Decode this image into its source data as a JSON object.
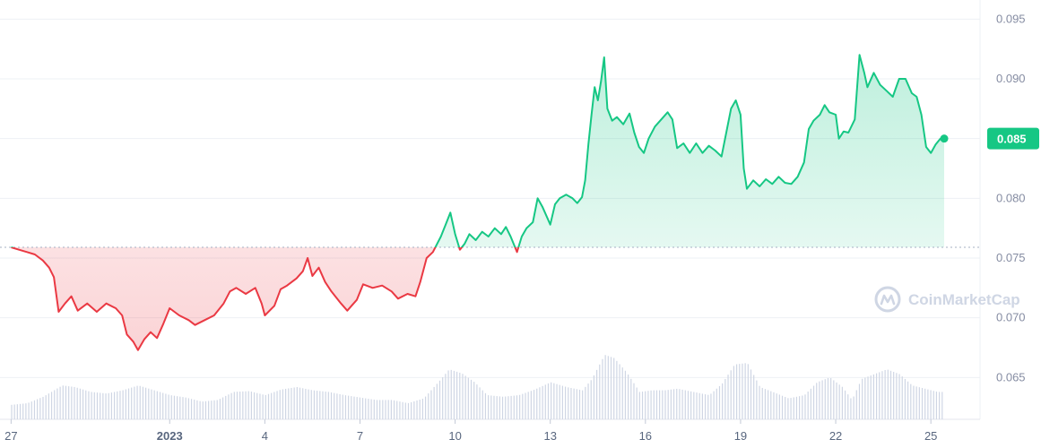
{
  "chart_data": {
    "type": "area",
    "y_axis_ticks": [
      "0.095",
      "0.090",
      "0.085",
      "0.080",
      "0.075",
      "0.070",
      "0.065"
    ],
    "ylim": [
      0.0615,
      0.0966
    ],
    "x_axis_ticks": [
      {
        "label": "27",
        "x": 0,
        "bold": false
      },
      {
        "label": "2023",
        "x": 5,
        "bold": true
      },
      {
        "label": "4",
        "x": 8,
        "bold": false
      },
      {
        "label": "7",
        "x": 11,
        "bold": false
      },
      {
        "label": "10",
        "x": 14,
        "bold": false
      },
      {
        "label": "13",
        "x": 17,
        "bold": false
      },
      {
        "label": "16",
        "x": 20,
        "bold": false
      },
      {
        "label": "19",
        "x": 23,
        "bold": false
      },
      {
        "label": "22",
        "x": 26,
        "bold": false
      },
      {
        "label": "25",
        "x": 29,
        "bold": false
      }
    ],
    "x_range": [
      -0.35,
      30.55
    ],
    "baseline": 0.0759,
    "current_price": {
      "label": "0.085",
      "value": 0.085
    },
    "price_series": [
      [
        0.0,
        0.0759
      ],
      [
        0.25,
        0.0757
      ],
      [
        0.5,
        0.0755
      ],
      [
        0.75,
        0.0753
      ],
      [
        1.0,
        0.0748
      ],
      [
        1.2,
        0.0742
      ],
      [
        1.35,
        0.0734
      ],
      [
        1.5,
        0.0705
      ],
      [
        1.7,
        0.0712
      ],
      [
        1.9,
        0.0718
      ],
      [
        2.1,
        0.0706
      ],
      [
        2.4,
        0.0712
      ],
      [
        2.7,
        0.0705
      ],
      [
        3.0,
        0.0712
      ],
      [
        3.3,
        0.0708
      ],
      [
        3.5,
        0.0702
      ],
      [
        3.65,
        0.0686
      ],
      [
        3.85,
        0.068
      ],
      [
        4.0,
        0.0673
      ],
      [
        4.2,
        0.0682
      ],
      [
        4.4,
        0.0688
      ],
      [
        4.6,
        0.0683
      ],
      [
        4.8,
        0.0695
      ],
      [
        5.0,
        0.0708
      ],
      [
        5.3,
        0.0702
      ],
      [
        5.6,
        0.0698
      ],
      [
        5.8,
        0.0694
      ],
      [
        6.1,
        0.0698
      ],
      [
        6.4,
        0.0702
      ],
      [
        6.7,
        0.0712
      ],
      [
        6.9,
        0.0722
      ],
      [
        7.1,
        0.0725
      ],
      [
        7.4,
        0.072
      ],
      [
        7.7,
        0.0725
      ],
      [
        7.9,
        0.0712
      ],
      [
        8.0,
        0.0702
      ],
      [
        8.3,
        0.071
      ],
      [
        8.5,
        0.0724
      ],
      [
        8.7,
        0.0727
      ],
      [
        9.0,
        0.0733
      ],
      [
        9.2,
        0.0739
      ],
      [
        9.35,
        0.075
      ],
      [
        9.5,
        0.0735
      ],
      [
        9.7,
        0.0742
      ],
      [
        9.9,
        0.073
      ],
      [
        10.1,
        0.0722
      ],
      [
        10.4,
        0.0712
      ],
      [
        10.6,
        0.0706
      ],
      [
        10.9,
        0.0715
      ],
      [
        11.1,
        0.0728
      ],
      [
        11.4,
        0.0725
      ],
      [
        11.7,
        0.0727
      ],
      [
        12.0,
        0.0722
      ],
      [
        12.2,
        0.0716
      ],
      [
        12.5,
        0.072
      ],
      [
        12.75,
        0.0718
      ],
      [
        12.9,
        0.073
      ],
      [
        13.1,
        0.075
      ],
      [
        13.3,
        0.0755
      ],
      [
        13.55,
        0.0768
      ],
      [
        13.7,
        0.0778
      ],
      [
        13.85,
        0.0788
      ],
      [
        14.0,
        0.077
      ],
      [
        14.15,
        0.0757
      ],
      [
        14.3,
        0.0762
      ],
      [
        14.45,
        0.077
      ],
      [
        14.65,
        0.0765
      ],
      [
        14.85,
        0.0772
      ],
      [
        15.05,
        0.0768
      ],
      [
        15.25,
        0.0775
      ],
      [
        15.45,
        0.077
      ],
      [
        15.6,
        0.0776
      ],
      [
        15.75,
        0.0768
      ],
      [
        15.95,
        0.0755
      ],
      [
        16.1,
        0.0768
      ],
      [
        16.25,
        0.0775
      ],
      [
        16.45,
        0.078
      ],
      [
        16.6,
        0.08
      ],
      [
        16.75,
        0.0793
      ],
      [
        16.9,
        0.0784
      ],
      [
        17.0,
        0.0778
      ],
      [
        17.15,
        0.0795
      ],
      [
        17.3,
        0.08
      ],
      [
        17.5,
        0.0803
      ],
      [
        17.7,
        0.08
      ],
      [
        17.85,
        0.0796
      ],
      [
        18.0,
        0.0801
      ],
      [
        18.1,
        0.0815
      ],
      [
        18.2,
        0.0845
      ],
      [
        18.3,
        0.087
      ],
      [
        18.4,
        0.0893
      ],
      [
        18.5,
        0.0882
      ],
      [
        18.6,
        0.0898
      ],
      [
        18.7,
        0.0918
      ],
      [
        18.8,
        0.0875
      ],
      [
        18.95,
        0.0865
      ],
      [
        19.1,
        0.0868
      ],
      [
        19.3,
        0.0862
      ],
      [
        19.5,
        0.0871
      ],
      [
        19.65,
        0.0855
      ],
      [
        19.8,
        0.0843
      ],
      [
        19.95,
        0.0838
      ],
      [
        20.1,
        0.085
      ],
      [
        20.3,
        0.086
      ],
      [
        20.5,
        0.0866
      ],
      [
        20.7,
        0.0872
      ],
      [
        20.85,
        0.0866
      ],
      [
        21.0,
        0.0842
      ],
      [
        21.2,
        0.0846
      ],
      [
        21.4,
        0.0838
      ],
      [
        21.6,
        0.0846
      ],
      [
        21.8,
        0.0838
      ],
      [
        22.0,
        0.0844
      ],
      [
        22.2,
        0.084
      ],
      [
        22.4,
        0.0835
      ],
      [
        22.55,
        0.0855
      ],
      [
        22.7,
        0.0875
      ],
      [
        22.85,
        0.0882
      ],
      [
        23.0,
        0.087
      ],
      [
        23.1,
        0.0825
      ],
      [
        23.2,
        0.0808
      ],
      [
        23.4,
        0.0815
      ],
      [
        23.6,
        0.081
      ],
      [
        23.8,
        0.0816
      ],
      [
        24.0,
        0.0812
      ],
      [
        24.2,
        0.0818
      ],
      [
        24.4,
        0.0813
      ],
      [
        24.6,
        0.0812
      ],
      [
        24.8,
        0.0818
      ],
      [
        25.0,
        0.083
      ],
      [
        25.15,
        0.0858
      ],
      [
        25.3,
        0.0865
      ],
      [
        25.5,
        0.087
      ],
      [
        25.65,
        0.0878
      ],
      [
        25.8,
        0.0872
      ],
      [
        26.0,
        0.087
      ],
      [
        26.1,
        0.085
      ],
      [
        26.25,
        0.0856
      ],
      [
        26.4,
        0.0855
      ],
      [
        26.6,
        0.0866
      ],
      [
        26.75,
        0.092
      ],
      [
        26.9,
        0.0905
      ],
      [
        27.0,
        0.0893
      ],
      [
        27.2,
        0.0905
      ],
      [
        27.4,
        0.0895
      ],
      [
        27.6,
        0.089
      ],
      [
        27.8,
        0.0885
      ],
      [
        28.0,
        0.09
      ],
      [
        28.2,
        0.09
      ],
      [
        28.4,
        0.0888
      ],
      [
        28.55,
        0.0885
      ],
      [
        28.7,
        0.087
      ],
      [
        28.85,
        0.0843
      ],
      [
        29.0,
        0.0838
      ],
      [
        29.15,
        0.0845
      ],
      [
        29.3,
        0.085
      ],
      [
        29.42,
        0.085
      ]
    ],
    "volume_series": [
      [
        0.0,
        0.18
      ],
      [
        0.5,
        0.2
      ],
      [
        1.0,
        0.28
      ],
      [
        1.3,
        0.35
      ],
      [
        1.6,
        0.42
      ],
      [
        2.0,
        0.4
      ],
      [
        2.5,
        0.34
      ],
      [
        3.0,
        0.32
      ],
      [
        3.5,
        0.36
      ],
      [
        4.0,
        0.42
      ],
      [
        4.5,
        0.36
      ],
      [
        5.0,
        0.3
      ],
      [
        5.5,
        0.27
      ],
      [
        6.0,
        0.22
      ],
      [
        6.5,
        0.24
      ],
      [
        7.0,
        0.34
      ],
      [
        7.5,
        0.35
      ],
      [
        8.0,
        0.3
      ],
      [
        8.5,
        0.37
      ],
      [
        9.0,
        0.4
      ],
      [
        9.5,
        0.36
      ],
      [
        10.0,
        0.34
      ],
      [
        10.5,
        0.3
      ],
      [
        11.0,
        0.27
      ],
      [
        11.5,
        0.24
      ],
      [
        12.0,
        0.24
      ],
      [
        12.5,
        0.2
      ],
      [
        13.0,
        0.26
      ],
      [
        13.5,
        0.48
      ],
      [
        13.8,
        0.62
      ],
      [
        14.2,
        0.57
      ],
      [
        14.6,
        0.46
      ],
      [
        15.0,
        0.3
      ],
      [
        15.5,
        0.28
      ],
      [
        16.0,
        0.3
      ],
      [
        16.5,
        0.37
      ],
      [
        17.0,
        0.46
      ],
      [
        17.5,
        0.4
      ],
      [
        18.0,
        0.36
      ],
      [
        18.3,
        0.5
      ],
      [
        18.7,
        0.8
      ],
      [
        19.0,
        0.76
      ],
      [
        19.4,
        0.58
      ],
      [
        19.8,
        0.34
      ],
      [
        20.2,
        0.36
      ],
      [
        20.6,
        0.36
      ],
      [
        21.0,
        0.38
      ],
      [
        21.5,
        0.34
      ],
      [
        22.0,
        0.3
      ],
      [
        22.4,
        0.44
      ],
      [
        22.8,
        0.68
      ],
      [
        23.2,
        0.7
      ],
      [
        23.6,
        0.4
      ],
      [
        24.0,
        0.34
      ],
      [
        24.5,
        0.26
      ],
      [
        25.0,
        0.3
      ],
      [
        25.4,
        0.46
      ],
      [
        25.8,
        0.52
      ],
      [
        26.2,
        0.4
      ],
      [
        26.5,
        0.24
      ],
      [
        26.8,
        0.5
      ],
      [
        27.2,
        0.56
      ],
      [
        27.6,
        0.62
      ],
      [
        28.0,
        0.56
      ],
      [
        28.4,
        0.42
      ],
      [
        28.8,
        0.38
      ],
      [
        29.2,
        0.34
      ],
      [
        29.42,
        0.34
      ]
    ],
    "colors": {
      "up": "#16c784",
      "down": "#ea3943",
      "grid": "#eef0f4",
      "baseline": "#a6b0c3",
      "volume": "#cfd6e4",
      "axis_text": "#858ca2"
    },
    "watermark": "CoinMarketCap"
  }
}
